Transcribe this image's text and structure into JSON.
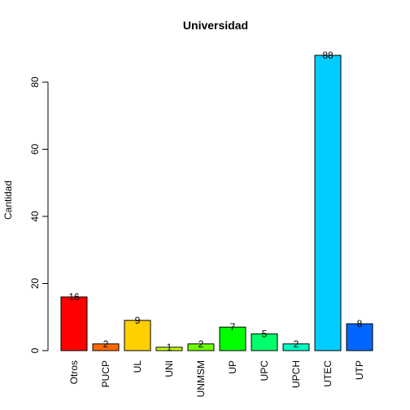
{
  "chart_data": {
    "type": "bar",
    "title": "Universidad",
    "xlabel": "",
    "ylabel": "Cantidad",
    "ylim": [
      0,
      90
    ],
    "yticks": [
      0,
      20,
      40,
      60,
      80
    ],
    "categories": [
      "Otros",
      "PUCP",
      "UL",
      "UNI",
      "UNMSM",
      "UP",
      "UPC",
      "UPCH",
      "UTEC",
      "UTP"
    ],
    "values": [
      16,
      2,
      9,
      1,
      2,
      7,
      5,
      2,
      88,
      8
    ],
    "colors": [
      "#FF0000",
      "#FF6A00",
      "#FFD000",
      "#C5FF00",
      "#6BFF00",
      "#00FF00",
      "#00FF6A",
      "#00FFC4",
      "#00CCFF",
      "#0066FF"
    ],
    "grid": false,
    "legend": "none"
  }
}
